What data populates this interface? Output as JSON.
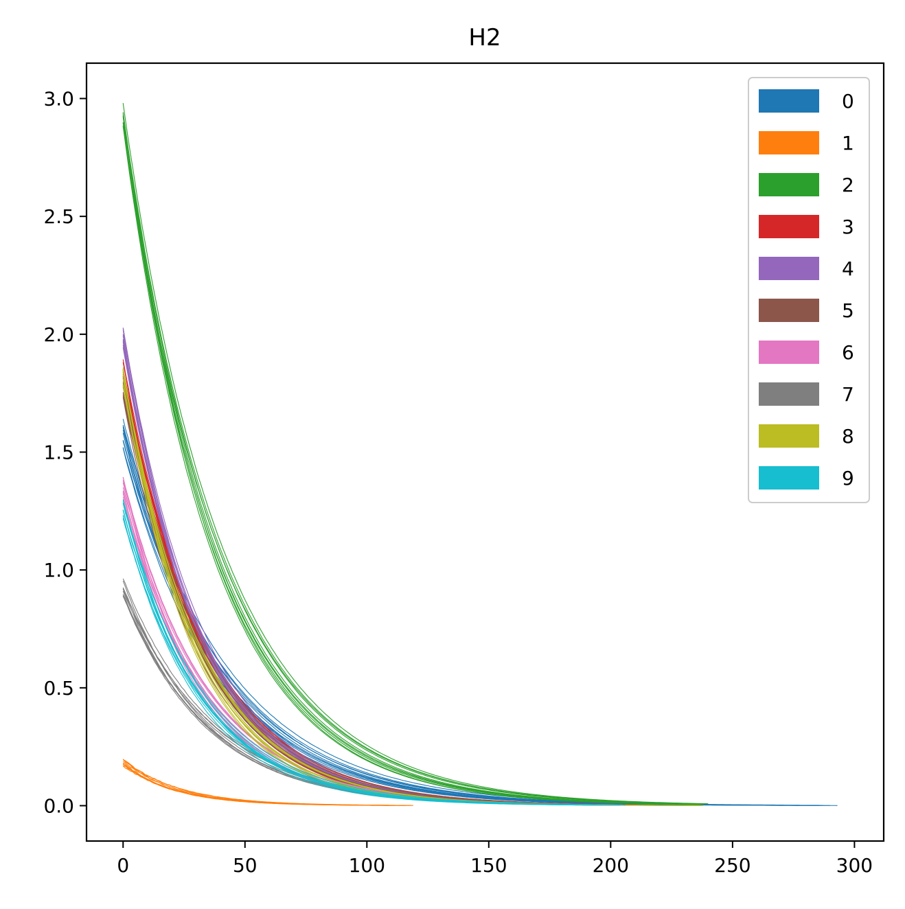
{
  "chart_data": {
    "type": "line",
    "title": "H2",
    "xlabel": "",
    "ylabel": "",
    "xlim": [
      -15,
      312
    ],
    "ylim": [
      -0.15,
      3.15
    ],
    "xticks": [
      0,
      50,
      100,
      150,
      200,
      250,
      300
    ],
    "yticks": [
      0.0,
      0.5,
      1.0,
      1.5,
      2.0,
      2.5,
      3.0
    ],
    "xtick_labels": [
      "0",
      "50",
      "100",
      "150",
      "200",
      "250",
      "300"
    ],
    "ytick_labels": [
      "0.0",
      "0.5",
      "1.0",
      "1.5",
      "2.0",
      "2.5",
      "3.0"
    ],
    "grid": false,
    "legend_position": "top-right",
    "series": [
      {
        "name": "0",
        "color": "#1f77b4",
        "start": 1.58,
        "decay": 0.025,
        "end_x": 297,
        "spread": 0.07
      },
      {
        "name": "1",
        "color": "#ff7f0e",
        "start": 0.18,
        "decay": 0.045,
        "end_x": 120,
        "spread": 0.02
      },
      {
        "name": "2",
        "color": "#2ca02c",
        "start": 2.93,
        "decay": 0.026,
        "end_x": 245,
        "spread": 0.06
      },
      {
        "name": "3",
        "color": "#d62728",
        "start": 1.85,
        "decay": 0.031,
        "end_x": 215,
        "spread": 0.05
      },
      {
        "name": "4",
        "color": "#9467bd",
        "start": 1.98,
        "decay": 0.032,
        "end_x": 210,
        "spread": 0.05
      },
      {
        "name": "5",
        "color": "#8c564b",
        "start": 1.78,
        "decay": 0.031,
        "end_x": 210,
        "spread": 0.05
      },
      {
        "name": "6",
        "color": "#e377c2",
        "start": 1.36,
        "decay": 0.031,
        "end_x": 200,
        "spread": 0.05
      },
      {
        "name": "7",
        "color": "#7f7f7f",
        "start": 0.92,
        "decay": 0.028,
        "end_x": 190,
        "spread": 0.05
      },
      {
        "name": "8",
        "color": "#bcbd22",
        "start": 1.82,
        "decay": 0.033,
        "end_x": 240,
        "spread": 0.05
      },
      {
        "name": "9",
        "color": "#17becf",
        "start": 1.26,
        "decay": 0.031,
        "end_x": 210,
        "spread": 0.06
      }
    ],
    "lines_per_series": 10
  }
}
